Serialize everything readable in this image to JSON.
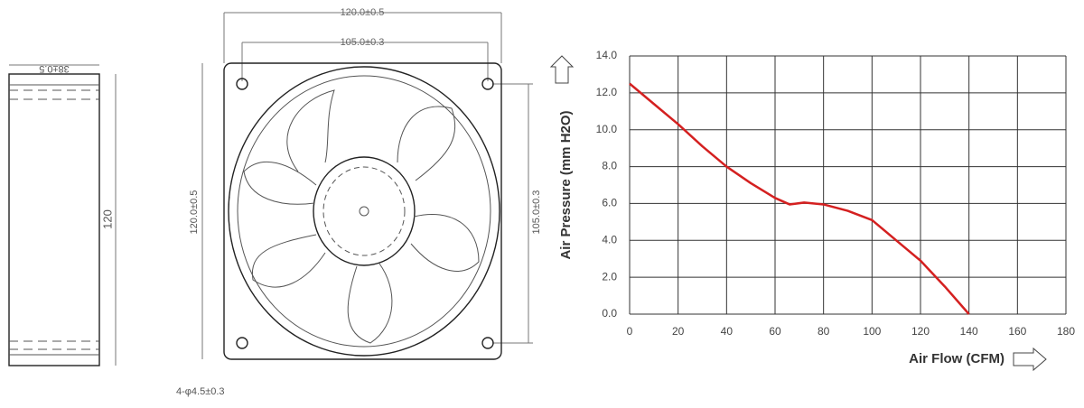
{
  "drawing": {
    "side_depth": "38±0.5",
    "side_height": "120",
    "top_outer": "120.0±0.5",
    "top_hole": "105.0±0.3",
    "left_outer": "120.0±0.5",
    "right_hole": "105.0±0.3",
    "holes": "4-φ4.5±0.3"
  },
  "chart_data": {
    "type": "line",
    "xlabel": "Air Flow (CFM)",
    "ylabel": "Air Pressure (mm H2O)",
    "x": [
      0,
      10,
      20,
      30,
      40,
      50,
      60,
      66,
      72,
      80,
      90,
      100,
      110,
      120,
      130,
      140
    ],
    "series": [
      {
        "name": null,
        "color": "#d42020",
        "values": [
          12.5,
          11.4,
          10.3,
          9.1,
          8.0,
          7.1,
          6.3,
          5.95,
          6.05,
          5.95,
          5.6,
          5.1,
          4.0,
          2.9,
          1.5,
          0
        ]
      }
    ],
    "xlim": [
      0,
      180
    ],
    "xticks": [
      0,
      20,
      40,
      60,
      80,
      100,
      120,
      140,
      160,
      180
    ],
    "ylim": [
      0,
      14
    ],
    "yticks": [
      {
        "value": 0,
        "label": "0.0"
      },
      {
        "value": 2,
        "label": "2.0"
      },
      {
        "value": 4,
        "label": "4.0"
      },
      {
        "value": 6,
        "label": "6.0"
      },
      {
        "value": 8,
        "label": "8.0"
      },
      {
        "value": 10,
        "label": "10.0"
      },
      {
        "value": 12,
        "label": "12.0"
      },
      {
        "value": 14,
        "label": "14.0"
      }
    ],
    "grid": true
  }
}
